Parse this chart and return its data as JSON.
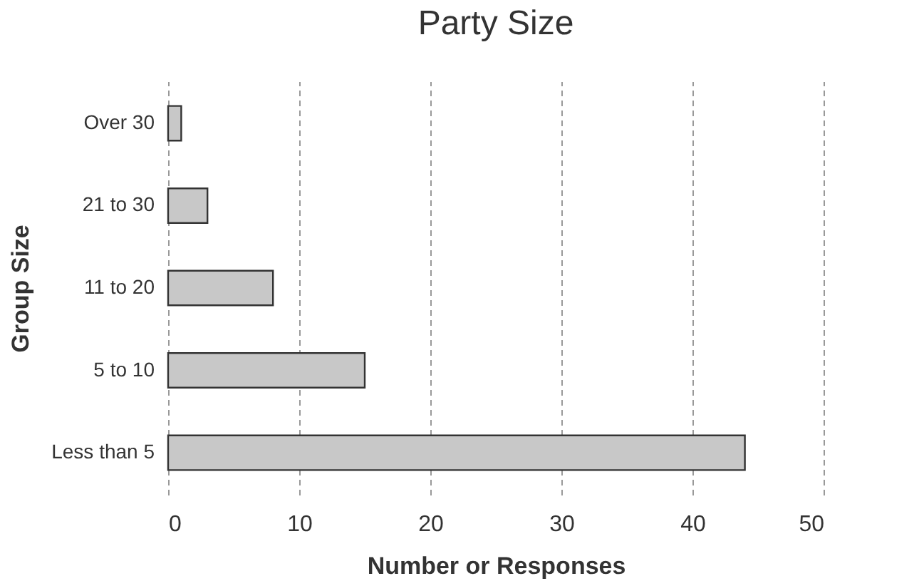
{
  "chart_data": {
    "type": "bar",
    "orientation": "horizontal",
    "title": "Party Size",
    "xlabel": "Number or Responses",
    "ylabel": "Group Size",
    "categories": [
      "Over 30",
      "21 to 30",
      "11 to 20",
      "5 to 10",
      "Less than 5"
    ],
    "values": [
      1,
      3,
      8,
      15,
      44
    ],
    "color": "#c8c8c8",
    "xlim": [
      0,
      50
    ],
    "xticks": [
      0,
      10,
      20,
      30,
      40,
      50
    ],
    "grid": "x"
  }
}
